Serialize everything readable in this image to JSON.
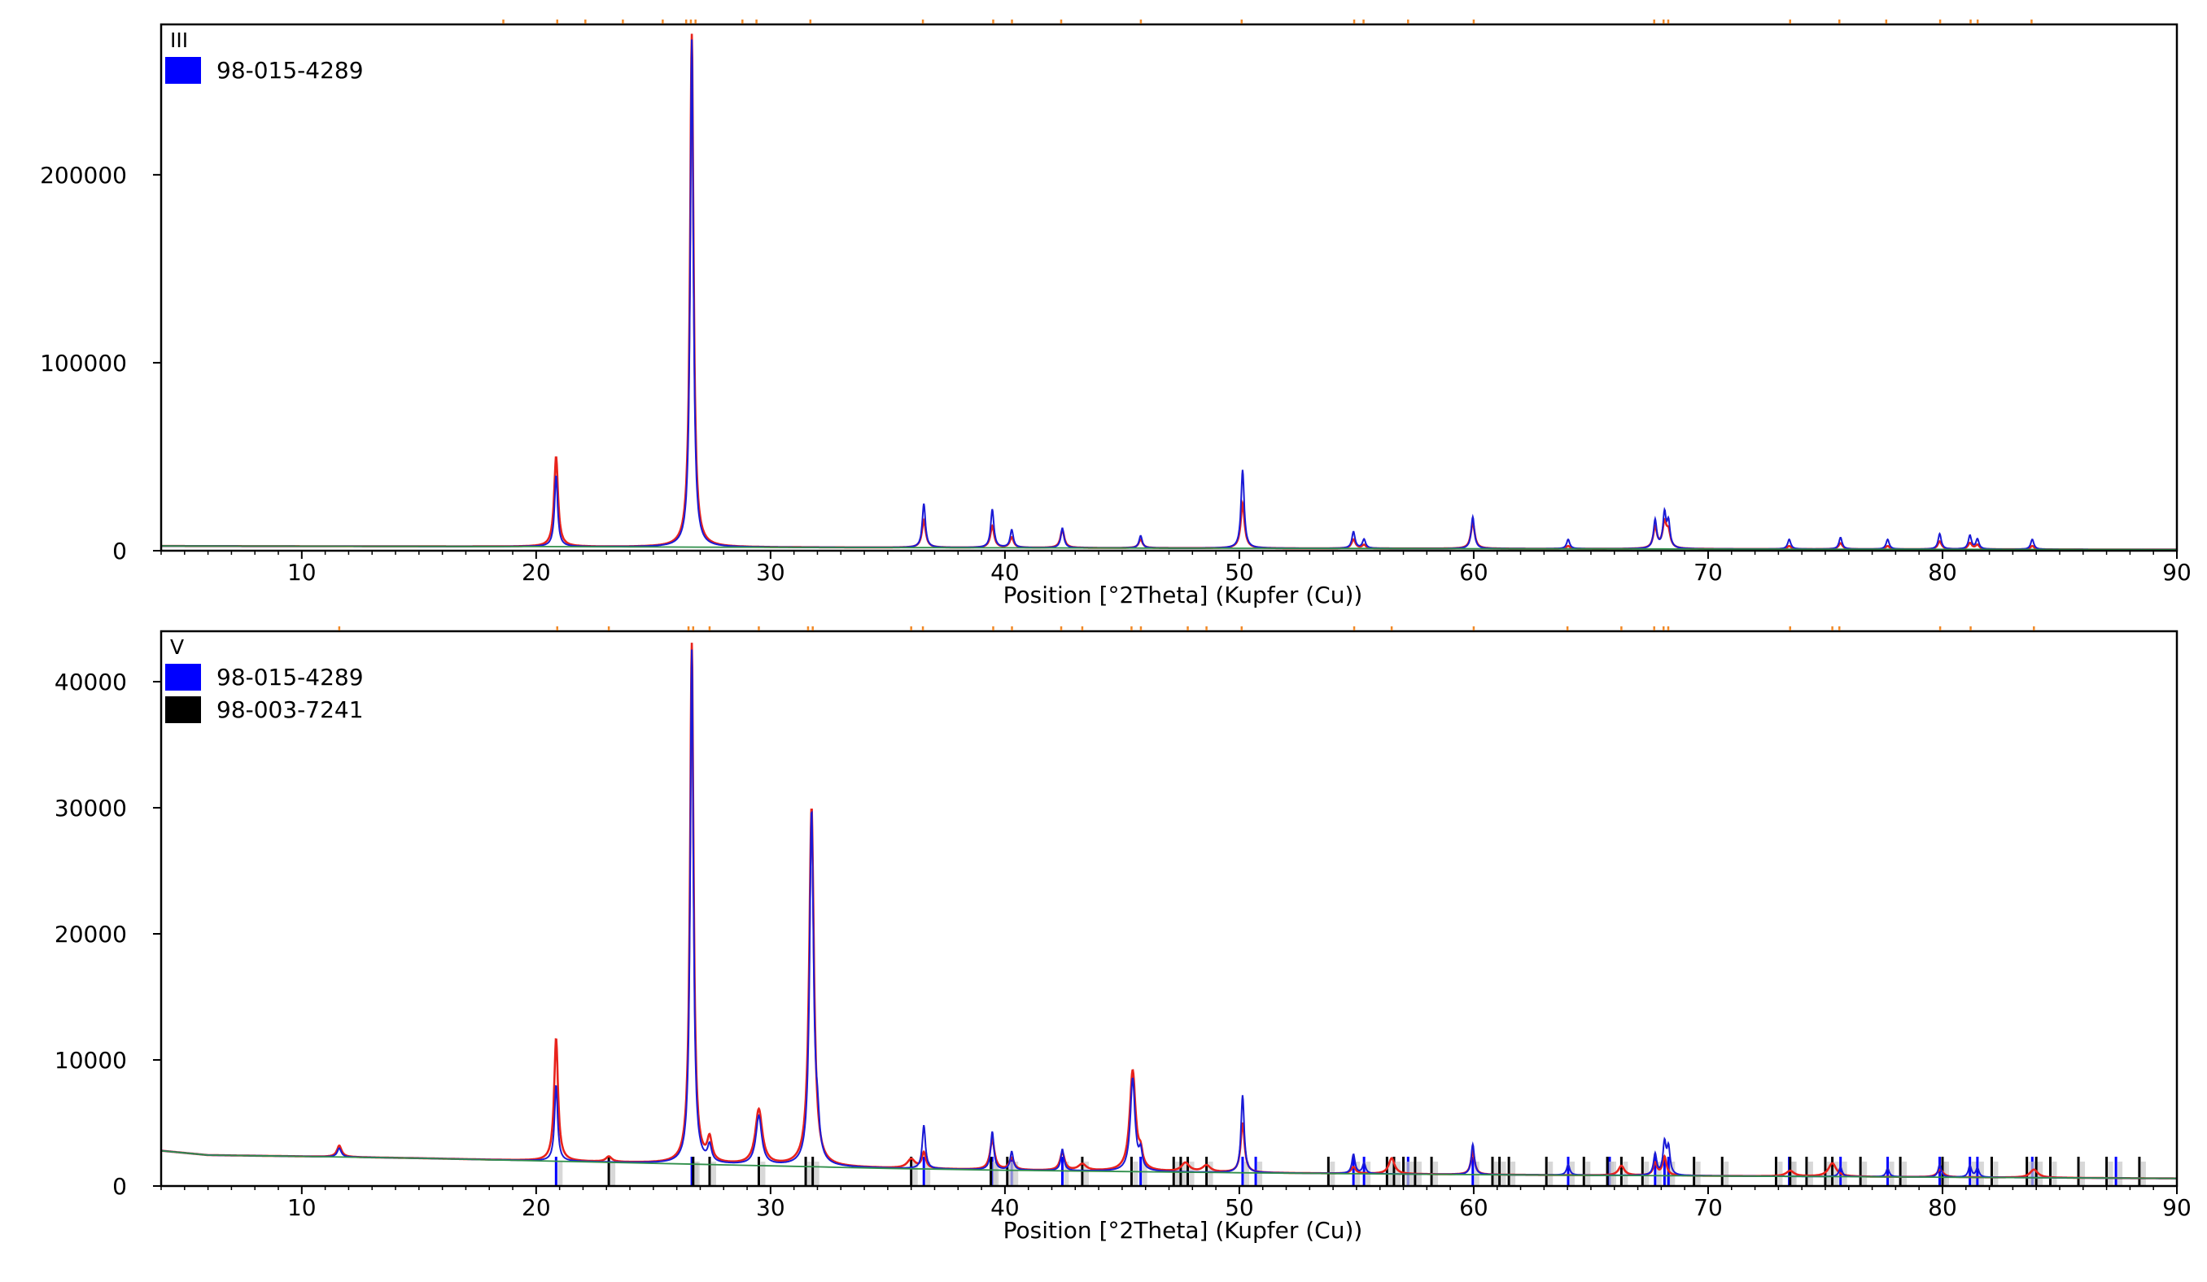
{
  "chart_data": [
    {
      "type": "line",
      "panel_label": "III",
      "xlabel": "Position [°2Theta] (Kupfer (Cu))",
      "ylabel": "",
      "xlim": [
        4,
        90
      ],
      "ylim": [
        0,
        280000
      ],
      "x_ticks": [
        10,
        20,
        30,
        40,
        50,
        60,
        70,
        80,
        90
      ],
      "y_ticks": [
        0,
        100000,
        200000
      ],
      "y_tick_labels": [
        "0",
        "100000",
        "200000"
      ],
      "legend": [
        {
          "name": "98-015-4289",
          "color": "#0000ff"
        }
      ],
      "baseline": [
        [
          4,
          2500
        ],
        [
          20,
          2200
        ],
        [
          30,
          1800
        ],
        [
          50,
          1300
        ],
        [
          70,
          900
        ],
        [
          90,
          600
        ]
      ],
      "series": [
        {
          "name": "observed",
          "color": "#e8231c",
          "peaks": [
            {
              "x": 20.85,
              "y": 50000,
              "w": 0.1
            },
            {
              "x": 26.64,
              "y": 275000,
              "w": 0.09
            },
            {
              "x": 36.54,
              "y": 16000,
              "w": 0.1
            },
            {
              "x": 39.46,
              "y": 13000,
              "w": 0.1
            },
            {
              "x": 40.29,
              "y": 7000,
              "w": 0.1
            },
            {
              "x": 42.45,
              "y": 11000,
              "w": 0.1
            },
            {
              "x": 45.79,
              "y": 6000,
              "w": 0.1
            },
            {
              "x": 50.14,
              "y": 25000,
              "w": 0.1
            },
            {
              "x": 54.87,
              "y": 6000,
              "w": 0.1
            },
            {
              "x": 55.32,
              "y": 3000,
              "w": 0.1
            },
            {
              "x": 59.96,
              "y": 15000,
              "w": 0.1
            },
            {
              "x": 64.03,
              "y": 2500,
              "w": 0.1
            },
            {
              "x": 67.74,
              "y": 12000,
              "w": 0.1
            },
            {
              "x": 68.14,
              "y": 14000,
              "w": 0.1
            },
            {
              "x": 68.31,
              "y": 9000,
              "w": 0.1
            },
            {
              "x": 73.46,
              "y": 2500,
              "w": 0.1
            },
            {
              "x": 75.65,
              "y": 4000,
              "w": 0.1
            },
            {
              "x": 77.66,
              "y": 2500,
              "w": 0.1
            },
            {
              "x": 79.88,
              "y": 5000,
              "w": 0.1
            },
            {
              "x": 81.17,
              "y": 4000,
              "w": 0.1
            },
            {
              "x": 81.49,
              "y": 3000,
              "w": 0.1
            },
            {
              "x": 83.83,
              "y": 2500,
              "w": 0.1
            }
          ]
        },
        {
          "name": "calculated",
          "color": "#1a1ad6",
          "peaks": [
            {
              "x": 20.85,
              "y": 40000,
              "w": 0.08
            },
            {
              "x": 26.64,
              "y": 272000,
              "w": 0.08
            },
            {
              "x": 36.54,
              "y": 25000,
              "w": 0.08
            },
            {
              "x": 39.46,
              "y": 22000,
              "w": 0.08
            },
            {
              "x": 40.29,
              "y": 11000,
              "w": 0.08
            },
            {
              "x": 42.45,
              "y": 12000,
              "w": 0.08
            },
            {
              "x": 45.79,
              "y": 8000,
              "w": 0.08
            },
            {
              "x": 50.14,
              "y": 43000,
              "w": 0.08
            },
            {
              "x": 54.87,
              "y": 10000,
              "w": 0.08
            },
            {
              "x": 55.32,
              "y": 6000,
              "w": 0.08
            },
            {
              "x": 59.96,
              "y": 18000,
              "w": 0.08
            },
            {
              "x": 64.03,
              "y": 6000,
              "w": 0.08
            },
            {
              "x": 67.74,
              "y": 16000,
              "w": 0.08
            },
            {
              "x": 68.14,
              "y": 19000,
              "w": 0.08
            },
            {
              "x": 68.31,
              "y": 14000,
              "w": 0.08
            },
            {
              "x": 73.46,
              "y": 6000,
              "w": 0.08
            },
            {
              "x": 75.65,
              "y": 7000,
              "w": 0.08
            },
            {
              "x": 77.66,
              "y": 6000,
              "w": 0.08
            },
            {
              "x": 79.88,
              "y": 9000,
              "w": 0.08
            },
            {
              "x": 81.17,
              "y": 8000,
              "w": 0.08
            },
            {
              "x": 81.49,
              "y": 6000,
              "w": 0.08
            },
            {
              "x": 83.83,
              "y": 6000,
              "w": 0.08
            }
          ]
        }
      ],
      "reference_lines": [
        {
          "name": "98-015-4289",
          "color": "#0000ff",
          "positions": []
        }
      ],
      "top_markers": {
        "color": "#f08a2a",
        "positions": [
          18.6,
          20.9,
          22.1,
          23.7,
          25.4,
          26.4,
          26.6,
          26.8,
          28.8,
          29.4,
          31.7,
          36.5,
          39.5,
          40.3,
          42.4,
          45.8,
          50.1,
          54.9,
          55.3,
          57.2,
          60.0,
          67.7,
          68.1,
          68.3,
          73.5,
          75.6,
          77.6,
          79.9,
          81.2,
          81.5,
          83.8
        ]
      }
    },
    {
      "type": "line",
      "panel_label": "V",
      "xlabel": "Position [°2Theta] (Kupfer (Cu))",
      "ylabel": "",
      "xlim": [
        4,
        90
      ],
      "ylim": [
        0,
        44000
      ],
      "x_ticks": [
        10,
        20,
        30,
        40,
        50,
        60,
        70,
        80,
        90
      ],
      "y_ticks": [
        0,
        10000,
        20000,
        30000,
        40000
      ],
      "y_tick_labels": [
        "0",
        "10000",
        "20000",
        "30000",
        "40000"
      ],
      "legend": [
        {
          "name": "98-015-4289",
          "color": "#0000ff"
        },
        {
          "name": "98-003-7241",
          "color": "#000000"
        }
      ],
      "baseline": [
        [
          4,
          2800
        ],
        [
          6,
          2450
        ],
        [
          10,
          2350
        ],
        [
          15,
          2200
        ],
        [
          20,
          2000
        ],
        [
          25,
          1800
        ],
        [
          30,
          1600
        ],
        [
          35,
          1400
        ],
        [
          40,
          1250
        ],
        [
          50,
          1050
        ],
        [
          60,
          900
        ],
        [
          70,
          800
        ],
        [
          80,
          700
        ],
        [
          90,
          600
        ]
      ],
      "series": [
        {
          "name": "observed",
          "color": "#e8231c",
          "peaks": [
            {
              "x": 11.6,
              "y": 3200,
              "w": 0.12
            },
            {
              "x": 20.85,
              "y": 11700,
              "w": 0.1
            },
            {
              "x": 23.1,
              "y": 2300,
              "w": 0.15
            },
            {
              "x": 26.64,
              "y": 43000,
              "w": 0.09
            },
            {
              "x": 27.4,
              "y": 3500,
              "w": 0.12
            },
            {
              "x": 29.5,
              "y": 6000,
              "w": 0.18
            },
            {
              "x": 31.75,
              "y": 30000,
              "w": 0.12
            },
            {
              "x": 36.0,
              "y": 2100,
              "w": 0.2
            },
            {
              "x": 36.54,
              "y": 2600,
              "w": 0.1
            },
            {
              "x": 39.46,
              "y": 3600,
              "w": 0.12
            },
            {
              "x": 40.29,
              "y": 2200,
              "w": 0.12
            },
            {
              "x": 42.45,
              "y": 2600,
              "w": 0.12
            },
            {
              "x": 43.3,
              "y": 1700,
              "w": 0.2
            },
            {
              "x": 45.45,
              "y": 9100,
              "w": 0.15
            },
            {
              "x": 45.79,
              "y": 2200,
              "w": 0.1
            },
            {
              "x": 47.7,
              "y": 1800,
              "w": 0.2
            },
            {
              "x": 48.6,
              "y": 1600,
              "w": 0.2
            },
            {
              "x": 50.14,
              "y": 5000,
              "w": 0.1
            },
            {
              "x": 54.87,
              "y": 1500,
              "w": 0.12
            },
            {
              "x": 56.5,
              "y": 2200,
              "w": 0.15
            },
            {
              "x": 59.96,
              "y": 2700,
              "w": 0.1
            },
            {
              "x": 66.3,
              "y": 1600,
              "w": 0.15
            },
            {
              "x": 67.74,
              "y": 1800,
              "w": 0.1
            },
            {
              "x": 68.14,
              "y": 2300,
              "w": 0.1
            },
            {
              "x": 73.5,
              "y": 1200,
              "w": 0.2
            },
            {
              "x": 75.3,
              "y": 1800,
              "w": 0.2
            },
            {
              "x": 79.9,
              "y": 1300,
              "w": 0.15
            },
            {
              "x": 83.9,
              "y": 1300,
              "w": 0.2
            }
          ]
        },
        {
          "name": "calculated",
          "color": "#1a1ad6",
          "peaks": [
            {
              "x": 11.6,
              "y": 3000,
              "w": 0.1
            },
            {
              "x": 20.85,
              "y": 8000,
              "w": 0.08
            },
            {
              "x": 26.64,
              "y": 42500,
              "w": 0.08
            },
            {
              "x": 27.4,
              "y": 3000,
              "w": 0.1
            },
            {
              "x": 29.5,
              "y": 5500,
              "w": 0.15
            },
            {
              "x": 31.75,
              "y": 29500,
              "w": 0.1
            },
            {
              "x": 32.0,
              "y": 4000,
              "w": 0.1
            },
            {
              "x": 36.54,
              "y": 4800,
              "w": 0.08
            },
            {
              "x": 39.46,
              "y": 4300,
              "w": 0.08
            },
            {
              "x": 40.29,
              "y": 2700,
              "w": 0.08
            },
            {
              "x": 42.45,
              "y": 2900,
              "w": 0.08
            },
            {
              "x": 45.45,
              "y": 8500,
              "w": 0.12
            },
            {
              "x": 45.79,
              "y": 2500,
              "w": 0.08
            },
            {
              "x": 50.14,
              "y": 7200,
              "w": 0.08
            },
            {
              "x": 54.87,
              "y": 2500,
              "w": 0.08
            },
            {
              "x": 55.32,
              "y": 1800,
              "w": 0.08
            },
            {
              "x": 59.96,
              "y": 3300,
              "w": 0.08
            },
            {
              "x": 64.03,
              "y": 1700,
              "w": 0.08
            },
            {
              "x": 67.74,
              "y": 2500,
              "w": 0.08
            },
            {
              "x": 68.14,
              "y": 3300,
              "w": 0.08
            },
            {
              "x": 68.31,
              "y": 2900,
              "w": 0.08
            },
            {
              "x": 75.65,
              "y": 1500,
              "w": 0.08
            },
            {
              "x": 77.66,
              "y": 1400,
              "w": 0.08
            },
            {
              "x": 79.88,
              "y": 1700,
              "w": 0.08
            },
            {
              "x": 81.17,
              "y": 1600,
              "w": 0.08
            },
            {
              "x": 81.49,
              "y": 1400,
              "w": 0.08
            }
          ]
        }
      ],
      "reference_lines": [
        {
          "name": "98-015-4289",
          "color": "#0000ff",
          "positions": [
            20.85,
            26.64,
            36.54,
            39.46,
            40.29,
            42.45,
            45.79,
            50.14,
            50.7,
            54.87,
            55.32,
            57.2,
            59.96,
            64.03,
            65.8,
            67.74,
            68.14,
            68.31,
            73.46,
            75.65,
            77.66,
            79.88,
            81.17,
            81.49,
            83.83,
            87.4
          ]
        },
        {
          "name": "98-003-7241",
          "color": "#000000",
          "positions": [
            23.1,
            26.7,
            27.4,
            29.5,
            31.5,
            31.8,
            36.0,
            39.4,
            40.1,
            43.3,
            45.4,
            47.2,
            47.5,
            47.8,
            48.6,
            53.8,
            56.3,
            56.6,
            57.0,
            57.5,
            58.2,
            60.8,
            61.1,
            61.5,
            63.1,
            64.7,
            65.7,
            66.3,
            67.2,
            69.4,
            70.6,
            72.9,
            73.5,
            74.2,
            75.0,
            75.3,
            76.5,
            78.2,
            80.0,
            82.1,
            83.6,
            84.0,
            84.6,
            85.8,
            87.0,
            88.4
          ]
        }
      ],
      "top_markers": {
        "color": "#f08a2a",
        "positions": [
          11.6,
          20.9,
          23.1,
          26.5,
          26.7,
          27.4,
          29.5,
          31.6,
          31.8,
          36.0,
          36.5,
          39.5,
          40.3,
          42.4,
          43.3,
          45.4,
          45.8,
          47.8,
          48.6,
          50.1,
          54.9,
          56.5,
          60.0,
          64.0,
          66.3,
          67.7,
          68.1,
          68.3,
          73.5,
          75.3,
          75.6,
          79.9,
          81.2,
          83.9
        ]
      }
    }
  ]
}
